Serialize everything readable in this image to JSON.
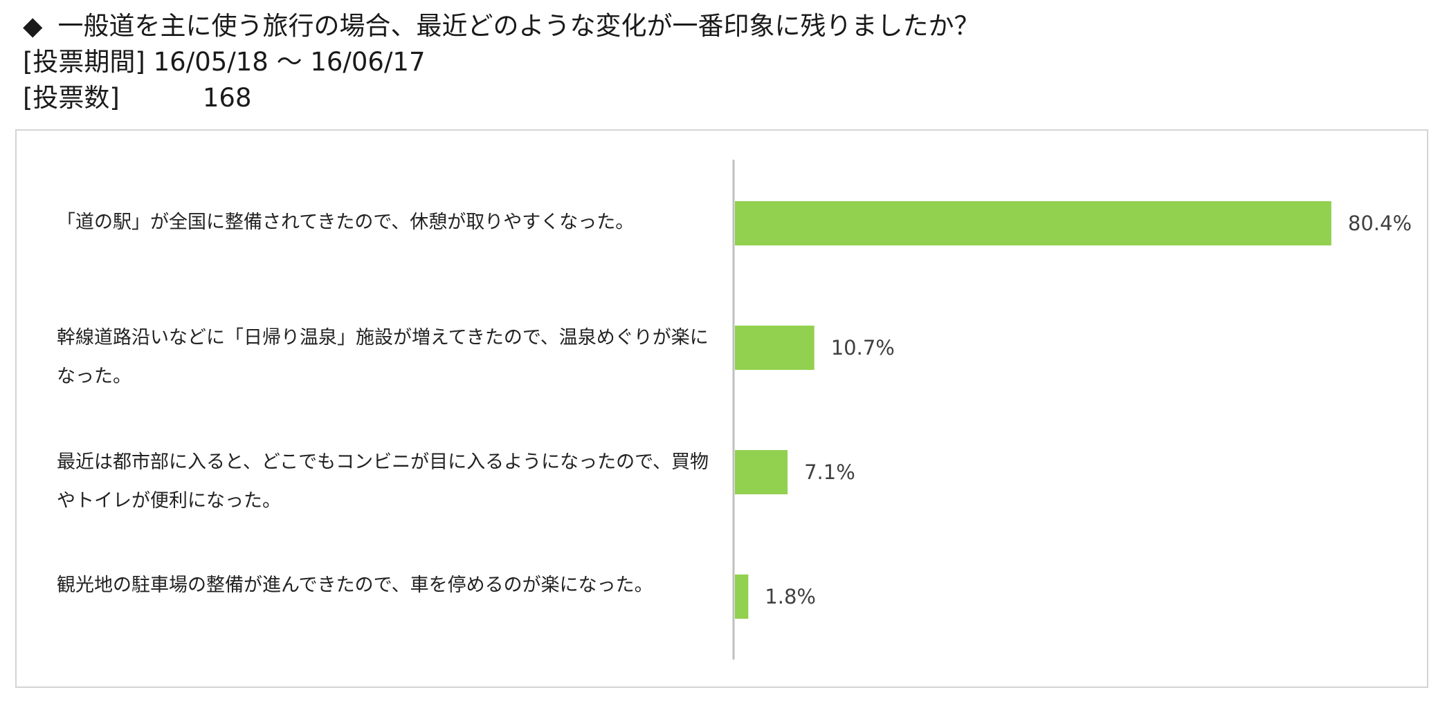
{
  "header": {
    "question_marker": "◆",
    "question": "一般道を主に使う旅行の場合、最近どのような変化が一番印象に残りましたか？",
    "period_label": "[投票期間]",
    "period_value": "16/05/18 ～ 16/06/17",
    "count_label": "[投票数]",
    "count_value": "168"
  },
  "chart_data": {
    "type": "bar",
    "orientation": "horizontal",
    "categories": [
      "「道の駅」が全国に整備されてきたので、休憩が取りやすくなった。",
      "幹線道路沿いなどに「日帰り温泉」施設が増えてきたので、温泉めぐりが楽になった。",
      "最近は都市部に入ると、どこでもコンビニが目に入るようになったので、買物やトイレが便利になった。",
      "観光地の駐車場の整備が進んできたので、車を停めるのが楽になった。"
    ],
    "values": [
      80.4,
      10.7,
      7.1,
      1.8
    ],
    "value_labels": [
      "80.4%",
      "10.7%",
      "7.1%",
      "1.8%"
    ],
    "unit": "%",
    "xlim": [
      0,
      100
    ],
    "bar_color": "#92d050",
    "axis_color": "#bfbfbf",
    "grid": false,
    "legend": "none"
  }
}
